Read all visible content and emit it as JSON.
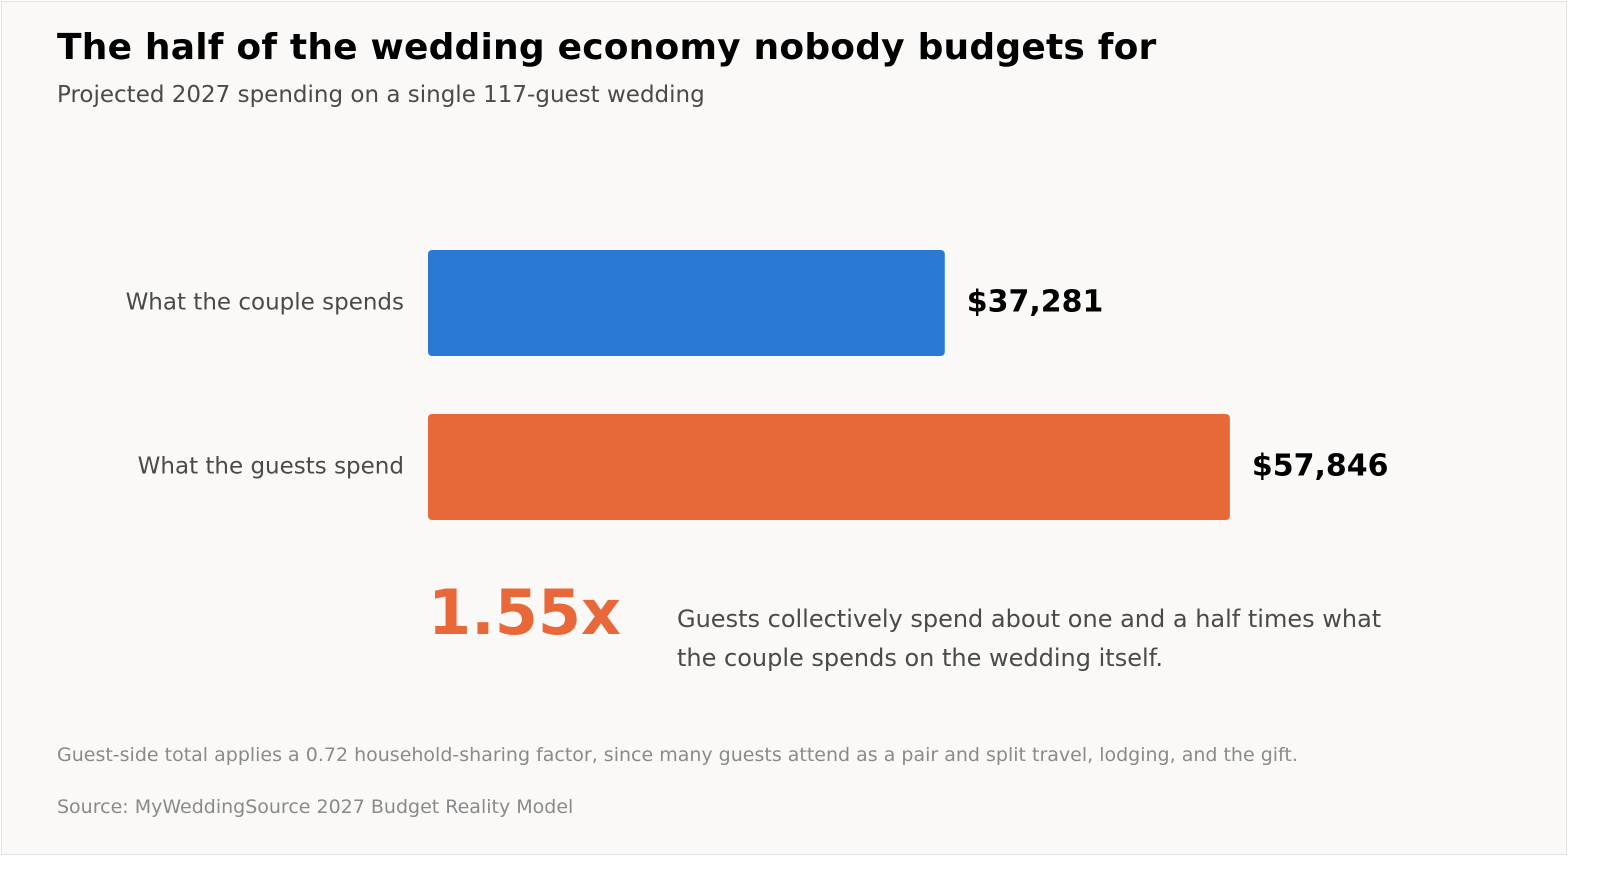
{
  "chart_data": {
    "type": "bar",
    "orientation": "horizontal",
    "title": "The half of the wedding economy nobody budgets for",
    "subtitle": "Projected 2027 spending on a single 117-guest wedding",
    "categories": [
      "What the couple spends",
      "What the guests spend"
    ],
    "values": [
      37281,
      57846
    ],
    "value_labels": [
      "$37,281",
      "$57,846"
    ],
    "colors": [
      "#2a7ad5",
      "#e8683a"
    ],
    "xlabel": "",
    "ylabel": "",
    "grid": false,
    "legend": "none"
  },
  "callout": {
    "ratio": "1.55x",
    "text": "Guests collectively spend about one and a half times what the couple spends on the wedding itself.",
    "color": "#e8683a"
  },
  "footnote": "Guest-side total applies a 0.72 household-sharing factor, since many guests attend as a pair and split travel, lodging, and the gift.",
  "source": "Source: MyWeddingSource 2027 Budget Reality Model"
}
